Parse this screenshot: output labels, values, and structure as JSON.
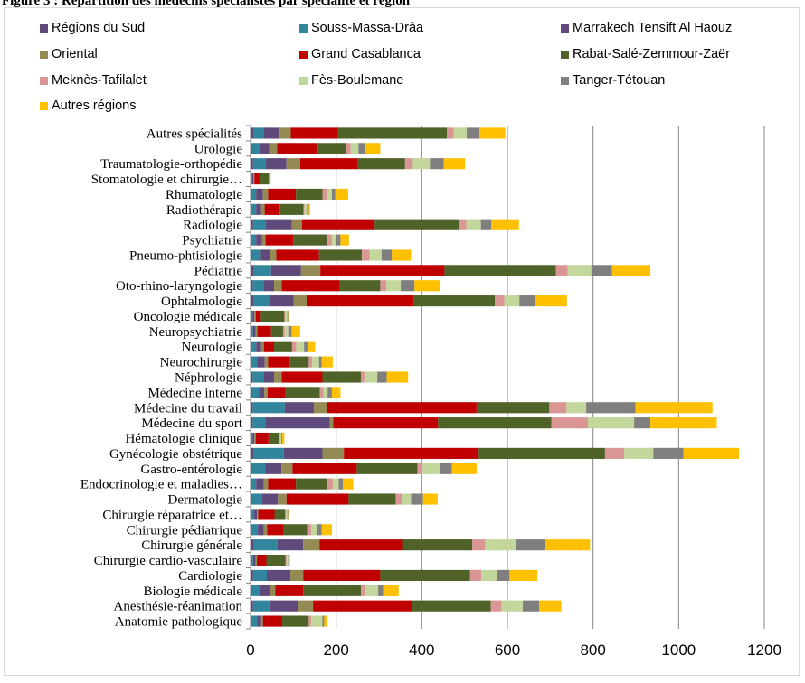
{
  "title_fragment": "Figure 3 : Répartition des médecins spécialistes par spécialité et région",
  "chart_data": {
    "type": "bar",
    "orientation": "horizontal",
    "stacked": true,
    "grid": true,
    "legend_position": "top",
    "xlim": [
      0,
      1200
    ],
    "x_ticks": [
      "0",
      "200",
      "400",
      "600",
      "800",
      "1000",
      "1200"
    ],
    "categories": [
      "Autres spécialités",
      "Urologie",
      "Traumatologie-orthopédie",
      "Stomatologie et chirurgie…",
      "Rhumatologie",
      "Radiothérapie",
      "Radiologie",
      "Psychiatrie",
      "Pneumo-phtisiologie",
      "Pédiatrie",
      "Oto-rhino-laryngologie",
      "Ophtalmologie",
      "Oncologie médicale",
      "Neuropsychiatrie",
      "Neurologie",
      "Neurochirurgie",
      "Néphrologie",
      "Médecine interne",
      "Médecine du travail",
      "Médecine du sport",
      "Hématologie clinique",
      "Gynécologie obstétrique",
      "Gastro-entérologie",
      "Endocrinologie et maladies…",
      "Dermatologie",
      "Chirurgie réparatrice et…",
      "Chirurgie pédiatrique",
      "Chirurgie générale",
      "Chirurgie cardio-vasculaire",
      "Cardiologie",
      "Biologie médicale",
      "Anesthésie-réanimation",
      "Anatomie pathologique"
    ],
    "series": [
      {
        "name": "Régions du Sud",
        "color": "#604a7b",
        "values": [
          8,
          4,
          6,
          2,
          3,
          3,
          6,
          3,
          4,
          8,
          5,
          8,
          2,
          2,
          3,
          3,
          5,
          4,
          5,
          5,
          2,
          8,
          4,
          3,
          4,
          2,
          3,
          8,
          2,
          6,
          4,
          6,
          3
        ]
      },
      {
        "name": "Souss-Massa-Drâa",
        "color": "#31859c",
        "values": [
          22,
          18,
          30,
          2,
          10,
          10,
          30,
          10,
          20,
          40,
          25,
          38,
          3,
          4,
          10,
          12,
          25,
          16,
          75,
          30,
          3,
          70,
          30,
          10,
          22,
          5,
          14,
          55,
          4,
          32,
          18,
          38,
          12
        ]
      },
      {
        "name": "Marrakech Tensift Al Haouz",
        "color": "#604a7b",
        "values": [
          38,
          22,
          48,
          3,
          16,
          12,
          60,
          14,
          22,
          70,
          25,
          55,
          4,
          6,
          12,
          18,
          25,
          12,
          68,
          150,
          4,
          90,
          38,
          18,
          38,
          8,
          14,
          60,
          6,
          55,
          24,
          68,
          10
        ]
      },
      {
        "name": "Oriental",
        "color": "#948a54",
        "values": [
          26,
          18,
          32,
          2,
          12,
          8,
          24,
          8,
          14,
          45,
          18,
          30,
          3,
          4,
          6,
          8,
          18,
          8,
          30,
          8,
          3,
          50,
          26,
          10,
          20,
          3,
          8,
          38,
          3,
          30,
          12,
          34,
          4
        ]
      },
      {
        "name": "Grand Casablanca",
        "color": "#c00000",
        "values": [
          110,
          95,
          135,
          12,
          65,
          35,
          170,
          65,
          100,
          290,
          135,
          250,
          12,
          32,
          24,
          50,
          95,
          42,
          350,
          245,
          30,
          315,
          150,
          65,
          145,
          38,
          38,
          195,
          22,
          180,
          65,
          230,
          45
        ]
      },
      {
        "name": "Rabat-Salé-Zemmour-Zaër",
        "color": "#4f6228",
        "values": [
          255,
          65,
          110,
          22,
          62,
          56,
          198,
          80,
          100,
          260,
          95,
          190,
          55,
          28,
          42,
          45,
          90,
          80,
          170,
          265,
          25,
          295,
          142,
          74,
          110,
          25,
          55,
          162,
          45,
          210,
          135,
          185,
          62
        ]
      },
      {
        "name": "Meknès-Tafilalet",
        "color": "#d99694",
        "values": [
          16,
          12,
          18,
          1,
          10,
          2,
          16,
          10,
          18,
          28,
          14,
          22,
          2,
          4,
          10,
          8,
          8,
          8,
          40,
          85,
          2,
          45,
          12,
          12,
          14,
          2,
          10,
          30,
          2,
          26,
          10,
          25,
          6
        ]
      },
      {
        "name": "Fès-Boulemane",
        "color": "#c3d69b",
        "values": [
          30,
          18,
          40,
          2,
          12,
          6,
          34,
          10,
          28,
          55,
          34,
          35,
          5,
          8,
          18,
          16,
          30,
          10,
          46,
          108,
          3,
          68,
          40,
          14,
          22,
          3,
          14,
          72,
          4,
          36,
          30,
          50,
          26
        ]
      },
      {
        "name": "Tanger-Tétouan",
        "color": "#7f7f7f",
        "values": [
          30,
          16,
          32,
          1,
          8,
          4,
          24,
          10,
          24,
          48,
          32,
          36,
          2,
          8,
          8,
          6,
          22,
          10,
          115,
          38,
          2,
          70,
          28,
          10,
          28,
          2,
          10,
          68,
          2,
          30,
          12,
          38,
          4
        ]
      },
      {
        "name": "Autres régions",
        "color": "#ffc000",
        "values": [
          60,
          35,
          50,
          0,
          30,
          3,
          65,
          20,
          45,
          90,
          60,
          75,
          2,
          20,
          18,
          26,
          50,
          20,
          180,
          155,
          5,
          130,
          58,
          24,
          34,
          2,
          24,
          105,
          2,
          65,
          36,
          52,
          8
        ]
      }
    ]
  }
}
